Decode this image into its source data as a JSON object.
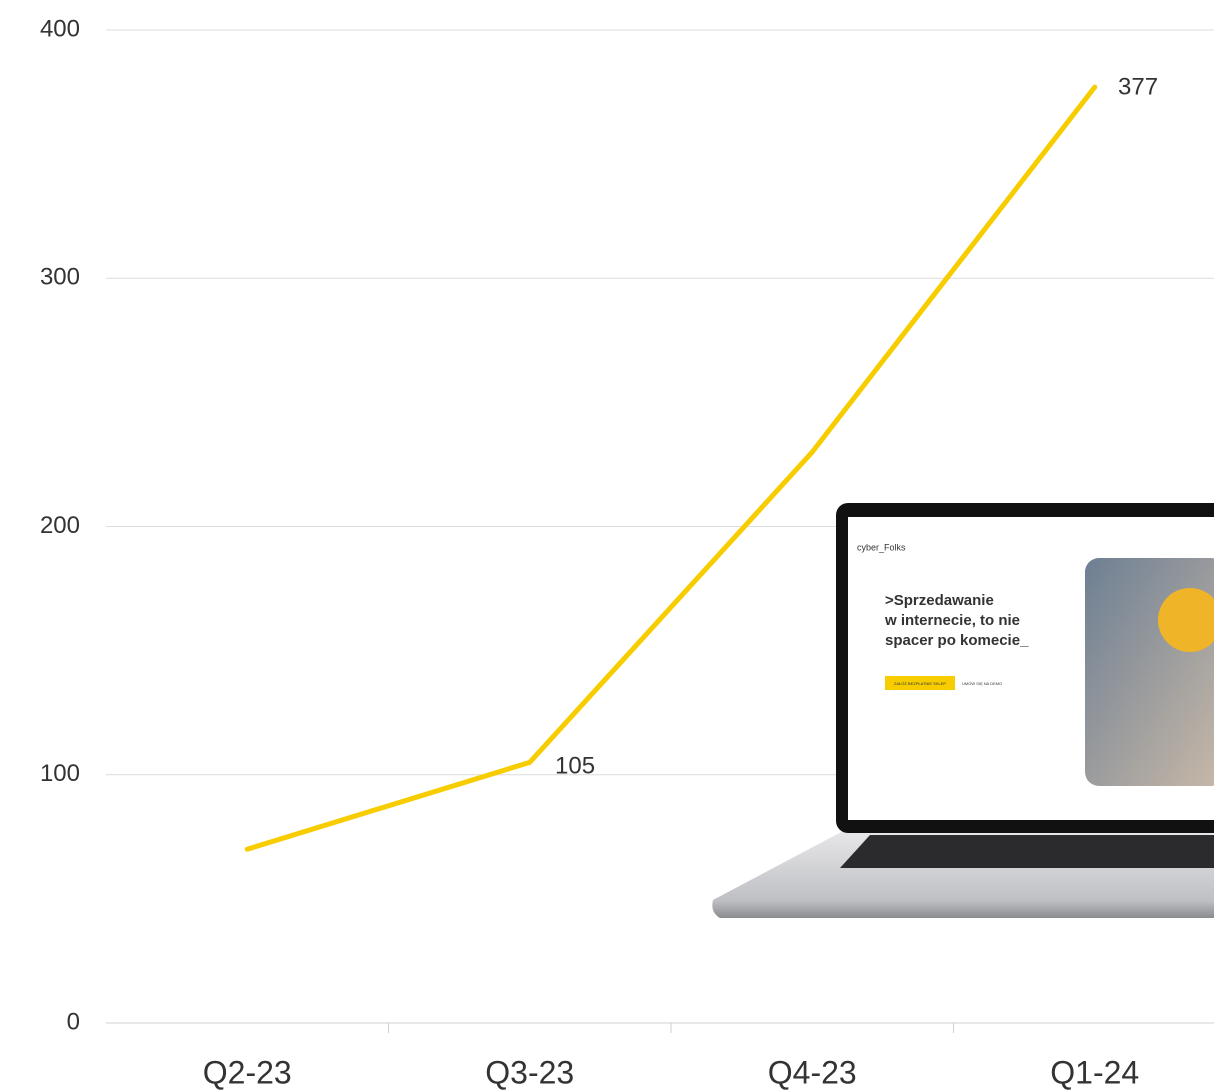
{
  "chart_data": {
    "type": "line",
    "categories": [
      "Q2-23",
      "Q3-23",
      "Q4-23",
      "Q1-24"
    ],
    "values": [
      70,
      105,
      230,
      377
    ],
    "color": "#f7cd00",
    "ylim": [
      0,
      400
    ],
    "yticks": [
      0,
      100,
      200,
      300,
      400
    ],
    "grid": true
  },
  "laptop_screen": {
    "logo": "cyber_Folks",
    "headline": [
      ">Sprzedawanie",
      "w internecie, to nie",
      "spacer po komecie_"
    ],
    "buttons": [
      "ZAŁÓŻ BEZPŁATNIE SKLEP",
      "UMÓW SIĘ NA DEMO"
    ]
  }
}
